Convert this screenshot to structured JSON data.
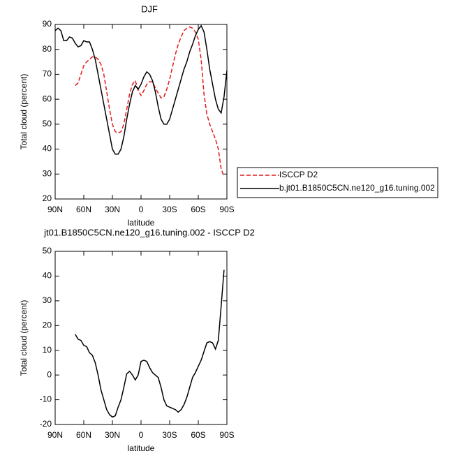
{
  "chart_data": [
    {
      "type": "line",
      "title": "DJF",
      "xlabel": "latitude",
      "ylabel": "Total cloud (percent)",
      "x": [
        90,
        87,
        84,
        81,
        78,
        75,
        72,
        69,
        66,
        63,
        60,
        57,
        54,
        51,
        48,
        45,
        42,
        39,
        36,
        33,
        30,
        27,
        24,
        21,
        18,
        15,
        12,
        9,
        6,
        3,
        0,
        -3,
        -6,
        -9,
        -12,
        -15,
        -18,
        -21,
        -24,
        -27,
        -30,
        -33,
        -36,
        -39,
        -42,
        -45,
        -48,
        -51,
        -54,
        -57,
        -60,
        -63,
        -66,
        -69,
        -72,
        -75,
        -78,
        -81,
        -84,
        -87,
        -90
      ],
      "xlim": [
        90,
        -90
      ],
      "xticks": [
        {
          "value": 90,
          "label": "90N"
        },
        {
          "value": 60,
          "label": "60N"
        },
        {
          "value": 30,
          "label": "30N"
        },
        0,
        {
          "value": -30,
          "label": "30S"
        },
        {
          "value": -60,
          "label": "60S"
        },
        {
          "value": -90,
          "label": "90S"
        }
      ],
      "ylim": [
        20,
        90
      ],
      "yticks": [
        20,
        30,
        40,
        50,
        60,
        70,
        80,
        90
      ],
      "series": [
        {
          "name": "ISCCP D2",
          "color": "#e41a1c",
          "dash": true,
          "values": [
            null,
            null,
            null,
            null,
            null,
            null,
            null,
            65.5,
            66.5,
            70,
            73.5,
            75,
            76,
            77,
            77,
            76,
            74,
            70,
            63,
            56,
            50,
            47,
            46.5,
            47,
            50,
            56,
            62,
            66,
            67.5,
            63.5,
            61.5,
            63.5,
            66,
            67,
            67,
            64.5,
            62.5,
            60.5,
            61,
            64,
            68,
            73,
            78,
            82,
            85,
            87.5,
            88.5,
            89,
            88.5,
            87,
            84,
            76,
            62,
            54,
            50,
            47,
            44,
            40,
            32,
            29,
            null
          ]
        },
        {
          "name": "b.jt01.B1850C5CN.ne120_g16.tuning.002",
          "color": "#000000",
          "dash": false,
          "values": [
            87.5,
            88.5,
            87.5,
            83.5,
            83.5,
            85,
            84.5,
            82.5,
            81,
            81.5,
            83.5,
            83,
            83,
            80,
            76,
            70,
            64,
            58,
            52,
            46,
            40,
            38,
            38,
            40,
            45,
            52,
            58,
            63,
            65.5,
            64,
            66,
            69,
            71,
            70,
            67.5,
            63,
            57,
            52,
            50,
            50,
            52,
            56,
            60,
            64,
            68,
            72,
            75,
            79,
            82,
            85.5,
            88,
            89.5,
            87,
            80,
            72,
            66,
            60,
            56,
            54.5,
            61,
            71.5
          ]
        }
      ]
    },
    {
      "type": "line",
      "title": "jt01.B1850C5CN.ne120_g16.tuning.002 - ISCCP D2",
      "xlabel": "latitude",
      "ylabel": "Total cloud (percent)",
      "x": [
        90,
        87,
        84,
        81,
        78,
        75,
        72,
        69,
        66,
        63,
        60,
        57,
        54,
        51,
        48,
        45,
        42,
        39,
        36,
        33,
        30,
        27,
        24,
        21,
        18,
        15,
        12,
        9,
        6,
        3,
        0,
        -3,
        -6,
        -9,
        -12,
        -15,
        -18,
        -21,
        -24,
        -27,
        -30,
        -33,
        -36,
        -39,
        -42,
        -45,
        -48,
        -51,
        -54,
        -57,
        -60,
        -63,
        -66,
        -69,
        -72,
        -75,
        -78,
        -81,
        -84,
        -87,
        -90
      ],
      "xlim": [
        90,
        -90
      ],
      "xticks": [
        {
          "value": 90,
          "label": "90N"
        },
        {
          "value": 60,
          "label": "60N"
        },
        {
          "value": 30,
          "label": "30N"
        },
        0,
        {
          "value": -30,
          "label": "30S"
        },
        {
          "value": -60,
          "label": "60S"
        },
        {
          "value": -90,
          "label": "90S"
        }
      ],
      "ylim": [
        -20,
        50
      ],
      "yticks": [
        -20,
        -10,
        0,
        10,
        20,
        30,
        40,
        50
      ],
      "series": [
        {
          "color": "#000000",
          "dash": false,
          "values": [
            null,
            null,
            null,
            null,
            null,
            null,
            null,
            16.5,
            14.5,
            14,
            12,
            11.5,
            9,
            8,
            5,
            0,
            -6,
            -10,
            -14,
            -16,
            -17,
            -16.5,
            -13,
            -10,
            -5,
            0.5,
            1.5,
            0,
            -2,
            0,
            5.5,
            6,
            5.5,
            3,
            1,
            0,
            -1,
            -5,
            -10,
            -12.5,
            -13,
            -13.5,
            -14,
            -15,
            -14,
            -12,
            -9,
            -5,
            -1,
            1,
            3.5,
            6,
            9.5,
            13,
            13.5,
            13,
            10.5,
            14,
            28,
            42.5,
            null
          ]
        }
      ]
    }
  ]
}
